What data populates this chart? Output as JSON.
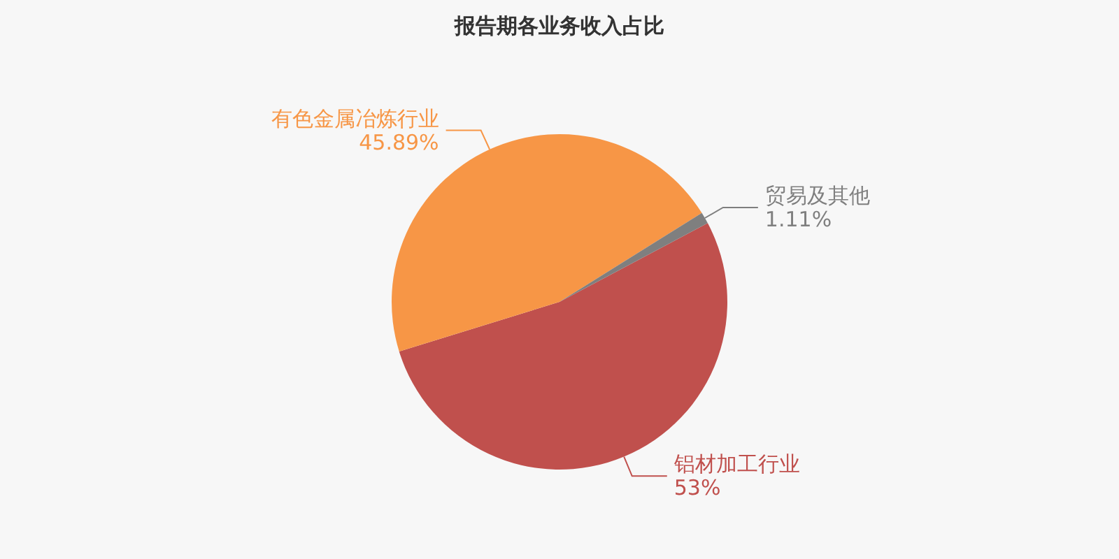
{
  "chart_data": {
    "type": "pie",
    "title": "报告期各业务收入占比",
    "categories": [
      "铝材加工行业",
      "有色金属冶炼行业",
      "贸易及其他"
    ],
    "values": [
      53,
      45.89,
      1.11
    ],
    "value_labels": [
      "53%",
      "45.89%",
      "1.11%"
    ],
    "colors": [
      "#c0504d",
      "#f79646",
      "#7f7f7f"
    ],
    "legend": false
  }
}
